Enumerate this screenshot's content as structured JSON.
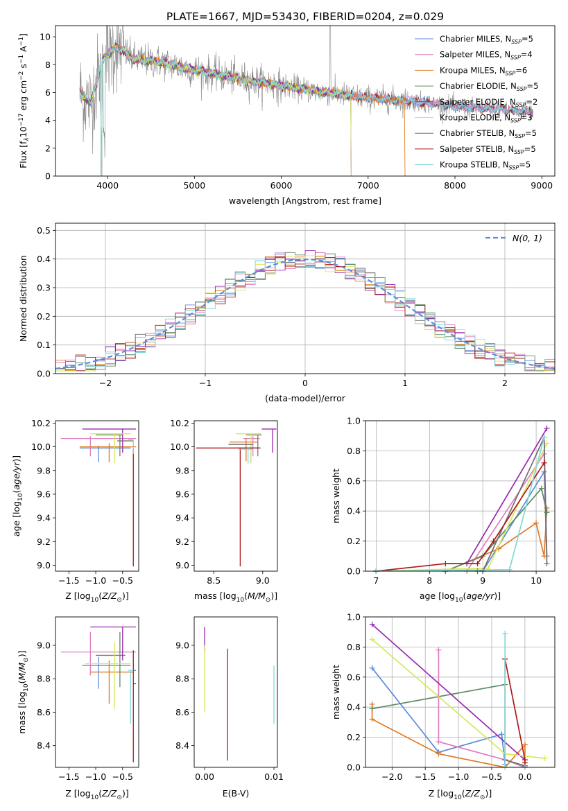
{
  "figure_title": "PLATE=1667, MJD=53430, FIBERID=0204, z=0.029",
  "colors": {
    "Chabrier MILES": "#5b8bd9",
    "Salpeter MILES": "#e07cc0",
    "Kroupa MILES": "#e07a22",
    "Chabrier ELODIE": "#5e8a64",
    "Salpeter ELODIE": "#9b27b0",
    "Kroupa ELODIE": "#d7e85a",
    "Chabrier STELIB": "#6e6e6e",
    "Salpeter STELIB": "#b01818",
    "Kroupa STELIB": "#7fd8d8"
  },
  "chart_data": [
    {
      "id": "spectrum",
      "type": "line",
      "xlabel": "wavelength [Angstrom, rest frame]",
      "ylabel_parts": {
        "a": "Flux [f",
        "sub1": "λ",
        "b": "10",
        "sup1": "−17",
        "c": " erg cm",
        "sup2": "−2",
        "d": " s",
        "sup3": "−1",
        "e": " A",
        "sup4": "−1",
        "f": "]"
      },
      "xlim": [
        3400,
        9150
      ],
      "ylim": [
        0,
        10.8
      ],
      "xticks": [
        4000,
        5000,
        6000,
        7000,
        8000,
        9000
      ],
      "yticks": [
        0,
        2,
        4,
        6,
        8,
        10
      ],
      "legend_position": "upper-right",
      "legend": [
        {
          "text": "Chabrier MILES, N",
          "sub": "SSP",
          "tail": "=5",
          "color": "#5b8bd9"
        },
        {
          "text": "Salpeter MILES, N",
          "sub": "SSP",
          "tail": "=4",
          "color": "#e07cc0"
        },
        {
          "text": "Kroupa MILES, N",
          "sub": "SSP",
          "tail": "=6",
          "color": "#e07a22"
        },
        {
          "text": "Chabrier ELODIE, N",
          "sub": "SSP",
          "tail": "=5",
          "color": "#5e8a64"
        },
        {
          "text": "Salpeter ELODIE, N",
          "sub": "SSP",
          "tail": "=2",
          "color": "#9b27b0"
        },
        {
          "text": "Kroupa ELODIE, N",
          "sub": "SSP",
          "tail": "=3",
          "color": "#d7e85a"
        },
        {
          "text": "Chabrier STELIB, N",
          "sub": "SSP",
          "tail": "=5",
          "color": "#6e6e6e"
        },
        {
          "text": "Salpeter STELIB, N",
          "sub": "SSP",
          "tail": "=5",
          "color": "#b01818"
        },
        {
          "text": "Kroupa STELIB, N",
          "sub": "SSP",
          "tail": "=5",
          "color": "#7fd8d8"
        }
      ],
      "continuum_anchor_points": [
        [
          3680,
          6.0
        ],
        [
          3800,
          5.2
        ],
        [
          3950,
          8.4
        ],
        [
          4100,
          9.3
        ],
        [
          4300,
          8.4
        ],
        [
          4600,
          8.2
        ],
        [
          5000,
          7.6
        ],
        [
          5500,
          7.0
        ],
        [
          6000,
          6.5
        ],
        [
          6500,
          6.0
        ],
        [
          7000,
          5.6
        ],
        [
          7500,
          5.4
        ],
        [
          8000,
          5.0
        ],
        [
          8500,
          4.8
        ],
        [
          8900,
          4.6
        ]
      ],
      "model_cutoffs": [
        {
          "model": "Kroupa MILES",
          "end": 7420
        },
        {
          "model": "Kroupa ELODIE",
          "end": 6800
        },
        {
          "model": "Chabrier ELODIE",
          "end": 6800
        },
        {
          "model": "Salpeter ELODIE",
          "end": 6800
        }
      ]
    },
    {
      "id": "residuals",
      "type": "histogram",
      "xlabel": "(data-model)/error",
      "ylabel": "Normed distribution",
      "xlim": [
        -2.5,
        2.5
      ],
      "ylim": [
        0,
        0.525
      ],
      "xticks": [
        -2,
        -1,
        0,
        1,
        2
      ],
      "xtick_labels": [
        "−2",
        "−1",
        "0",
        "1",
        "2"
      ],
      "yticks": [
        0.0,
        0.1,
        0.2,
        0.3,
        0.4,
        0.5
      ],
      "bin_width": 0.1,
      "grid": true,
      "legend_position": "upper-right",
      "legend_label": "N(0, 1)",
      "reference_curve": "standard normal",
      "reference_color": "#5b8bd9"
    },
    {
      "id": "age_vs_Z",
      "type": "errorbar",
      "xlabel": "Z [log10(Z/Z⊙)]",
      "ylabel": "age  [log10(age/yr)]",
      "xlim": [
        -1.75,
        -0.2
      ],
      "ylim": [
        8.95,
        10.22
      ],
      "xticks": [
        -1.5,
        -1.0,
        -0.5
      ],
      "xtick_labels": [
        "−1.5",
        "−1.0",
        "−0.5"
      ],
      "yticks": [
        9.0,
        9.2,
        9.4,
        9.6,
        9.8,
        10.0,
        10.2
      ],
      "points": [
        {
          "model": "Chabrier MILES",
          "x": -0.95,
          "xerr": [
            0.35,
            0.6
          ],
          "y": 9.99,
          "yerr": [
            0.12,
            0.02
          ]
        },
        {
          "model": "Salpeter MILES",
          "x": -1.1,
          "xerr": [
            0.55,
            0.85
          ],
          "y": 10.07,
          "yerr": [
            0.15,
            0.02
          ]
        },
        {
          "model": "Kroupa MILES",
          "x": -0.75,
          "xerr": [
            0.55,
            0.5
          ],
          "y": 10.0,
          "yerr": [
            0.13,
            0.03
          ]
        },
        {
          "model": "Chabrier ELODIE",
          "x": -0.55,
          "xerr": [
            0.45,
            0.05
          ],
          "y": 10.1,
          "yerr": [
            0.18,
            0.0
          ]
        },
        {
          "model": "Salpeter ELODIE",
          "x": -0.5,
          "xerr": [
            0.75,
            0.25
          ],
          "y": 10.15,
          "yerr": [
            0.2,
            0.0
          ]
        },
        {
          "model": "Kroupa ELODIE",
          "x": -0.65,
          "xerr": [
            0.45,
            0.3
          ],
          "y": 10.11,
          "yerr": [
            0.25,
            0.0
          ]
        },
        {
          "model": "Chabrier STELIB",
          "x": -0.3,
          "xerr": [
            0.3,
            0.0
          ],
          "y": 10.05,
          "yerr": [
            0.0,
            0.0
          ]
        },
        {
          "model": "Salpeter STELIB",
          "x": -0.3,
          "xerr": [
            0.0,
            0.0
          ],
          "y": 9.99,
          "yerr": [
            1.0,
            0.0
          ]
        },
        {
          "model": "Kroupa STELIB",
          "x": -0.3,
          "xerr": [
            0.1,
            0.0
          ],
          "y": 10.06,
          "yerr": [
            0.12,
            0.0
          ]
        }
      ]
    },
    {
      "id": "age_vs_mass",
      "type": "errorbar",
      "xlabel": "mass [log10(M/M⊙)]",
      "xlim": [
        8.3,
        9.15
      ],
      "ylim": [
        8.95,
        10.22
      ],
      "xticks": [
        8.5,
        9.0
      ],
      "xtick_labels": [
        "8.5",
        "9.0"
      ],
      "yticks": [
        9.0,
        9.2,
        9.4,
        9.6,
        9.8,
        10.0,
        10.2
      ],
      "points": [
        {
          "model": "Chabrier MILES",
          "x": 8.88,
          "xerr": [
            0.17,
            0.1
          ],
          "y": 9.99,
          "yerr": [
            0.12,
            0.02
          ]
        },
        {
          "model": "Salpeter MILES",
          "x": 8.9,
          "xerr": [
            0.1,
            0.07
          ],
          "y": 10.07,
          "yerr": [
            0.15,
            0.02
          ]
        },
        {
          "model": "Kroupa MILES",
          "x": 8.83,
          "xerr": [
            0.17,
            0.12
          ],
          "y": 10.04,
          "yerr": [
            0.16,
            0.03
          ]
        },
        {
          "model": "Chabrier ELODIE",
          "x": 8.95,
          "xerr": [
            0.12,
            0.04
          ],
          "y": 10.1,
          "yerr": [
            0.18,
            0.0
          ]
        },
        {
          "model": "Salpeter ELODIE",
          "x": 9.1,
          "xerr": [
            0.11,
            0.04
          ],
          "y": 10.15,
          "yerr": [
            0.2,
            0.0
          ]
        },
        {
          "model": "Kroupa ELODIE",
          "x": 8.88,
          "xerr": [
            0.15,
            0.1
          ],
          "y": 10.11,
          "yerr": [
            0.25,
            0.0
          ]
        },
        {
          "model": "Chabrier STELIB",
          "x": 8.85,
          "xerr": [
            0.2,
            0.05
          ],
          "y": 10.02,
          "yerr": [
            0.0,
            0.0
          ]
        },
        {
          "model": "Salpeter STELIB",
          "x": 8.77,
          "xerr": [
            0.45,
            0.2
          ],
          "y": 9.99,
          "yerr": [
            1.0,
            0.0
          ]
        },
        {
          "model": "Kroupa STELIB",
          "x": 8.85,
          "xerr": [
            0.1,
            0.05
          ],
          "y": 9.98,
          "yerr": [
            0.12,
            0.02
          ]
        }
      ]
    },
    {
      "id": "weight_vs_age",
      "type": "line",
      "xlabel": "age  [log10(age/yr)]",
      "ylabel": "mass weight",
      "xlim": [
        6.8,
        10.35
      ],
      "ylim": [
        0,
        1.0
      ],
      "xticks": [
        7,
        8,
        9,
        10
      ],
      "yticks": [
        0.0,
        0.2,
        0.4,
        0.6,
        0.8,
        1.0
      ],
      "grid": true,
      "series": [
        {
          "model": "Chabrier MILES",
          "x": [
            7.0,
            8.3,
            9.0,
            10.15,
            10.2
          ],
          "y": [
            0.0,
            0.0,
            0.0,
            0.66,
            0.1
          ]
        },
        {
          "model": "Salpeter MILES",
          "x": [
            7.0,
            8.7,
            10.15,
            10.2
          ],
          "y": [
            0.0,
            0.0,
            0.78,
            0.1
          ]
        },
        {
          "model": "Kroupa MILES",
          "x": [
            7.0,
            8.3,
            9.3,
            10.0,
            10.15,
            10.2
          ],
          "y": [
            0.0,
            0.0,
            0.15,
            0.32,
            0.1,
            0.42
          ]
        },
        {
          "model": "Chabrier ELODIE",
          "x": [
            7.0,
            8.3,
            9.0,
            10.1,
            10.2
          ],
          "y": [
            0.0,
            0.0,
            0.1,
            0.55,
            0.39
          ]
        },
        {
          "model": "Salpeter ELODIE",
          "x": [
            8.7,
            10.2
          ],
          "y": [
            0.05,
            0.95
          ]
        },
        {
          "model": "Kroupa ELODIE",
          "x": [
            7.0,
            9.1,
            10.2
          ],
          "y": [
            0.0,
            0.02,
            0.85
          ]
        },
        {
          "model": "Chabrier STELIB",
          "x": [
            7.0,
            8.9,
            9.0,
            10.15,
            10.2
          ],
          "y": [
            0.0,
            0.0,
            0.0,
            0.89,
            0.05
          ]
        },
        {
          "model": "Salpeter STELIB",
          "x": [
            7.0,
            8.3,
            8.9,
            9.2,
            10.15
          ],
          "y": [
            0.0,
            0.05,
            0.05,
            0.2,
            0.72
          ]
        },
        {
          "model": "Kroupa STELIB",
          "x": [
            7.0,
            9.5,
            10.15
          ],
          "y": [
            0.0,
            0.01,
            0.89
          ]
        }
      ]
    },
    {
      "id": "mass_vs_Z",
      "type": "errorbar",
      "xlabel": "Z [log10(Z/Z⊙)]",
      "ylabel": "mass [log10(M/M⊙)]",
      "xlim": [
        -1.75,
        -0.2
      ],
      "ylim": [
        8.27,
        9.17
      ],
      "xticks": [
        -1.5,
        -1.0,
        -0.5
      ],
      "xtick_labels": [
        "−1.5",
        "−1.0",
        "−0.5"
      ],
      "yticks": [
        8.4,
        8.6,
        8.8,
        9.0
      ],
      "points": [
        {
          "model": "Chabrier MILES",
          "x": -0.95,
          "xerr": [
            0.3,
            0.6
          ],
          "y": 8.88,
          "yerr": [
            0.14,
            0.05
          ]
        },
        {
          "model": "Salpeter MILES",
          "x": -1.1,
          "xerr": [
            0.55,
            0.85
          ],
          "y": 8.96,
          "yerr": [
            0.14,
            0.12
          ]
        },
        {
          "model": "Kroupa MILES",
          "x": -0.75,
          "xerr": [
            0.35,
            0.45
          ],
          "y": 8.84,
          "yerr": [
            0.19,
            0.07
          ]
        },
        {
          "model": "Chabrier ELODIE",
          "x": -0.55,
          "xerr": [
            0.45,
            0.1
          ],
          "y": 8.94,
          "yerr": [
            0.19,
            0.14
          ]
        },
        {
          "model": "Salpeter ELODIE",
          "x": -0.5,
          "xerr": [
            0.6,
            0.25
          ],
          "y": 9.11,
          "yerr": [
            0.2,
            0.0
          ]
        },
        {
          "model": "Kroupa ELODIE",
          "x": -0.65,
          "xerr": [
            0.55,
            0.3
          ],
          "y": 8.89,
          "yerr": [
            0.27,
            0.13
          ]
        },
        {
          "model": "Chabrier STELIB",
          "x": -0.3,
          "xerr": [
            0.0,
            0.05
          ],
          "y": 8.85,
          "yerr": [
            0.0,
            0.0
          ]
        },
        {
          "model": "Salpeter STELIB",
          "x": -0.3,
          "xerr": [
            0.0,
            0.05
          ],
          "y": 8.77,
          "yerr": [
            0.47,
            0.2
          ]
        },
        {
          "model": "Kroupa STELIB",
          "x": -0.35,
          "xerr": [
            0.05,
            0.05
          ],
          "y": 8.85,
          "yerr": [
            0.32,
            0.0
          ]
        }
      ]
    },
    {
      "id": "mass_vs_ebv",
      "type": "errorbar",
      "xlabel": "E(B-V)",
      "xlim": [
        -0.0015,
        0.0105
      ],
      "ylim": [
        8.27,
        9.17
      ],
      "xticks": [
        0.0,
        0.01
      ],
      "xtick_labels": [
        "0.00",
        "0.01"
      ],
      "yticks": [
        8.4,
        8.6,
        8.8,
        9.0
      ],
      "points": [
        {
          "model": "Salpeter ELODIE",
          "x": 0.0,
          "xerr": [
            0,
            0
          ],
          "y": 9.11,
          "yerr": [
            0.15,
            0.0
          ]
        },
        {
          "model": "Kroupa ELODIE",
          "x": 0.0,
          "xerr": [
            0,
            0
          ],
          "y": 8.9,
          "yerr": [
            0.3,
            0.1
          ]
        },
        {
          "model": "Salpeter STELIB",
          "x": 0.0033,
          "xerr": [
            0,
            0
          ],
          "y": 8.98,
          "yerr": [
            0.67,
            0.0
          ]
        },
        {
          "model": "Kroupa STELIB",
          "x": 0.01,
          "xerr": [
            0,
            0
          ],
          "y": 8.88,
          "yerr": [
            0.35,
            0.0
          ]
        }
      ]
    },
    {
      "id": "weight_vs_Z",
      "type": "line",
      "xlabel": "Z [log10(Z/Z⊙)]",
      "ylabel": "mass weight",
      "xlim": [
        -2.4,
        0.45
      ],
      "ylim": [
        0,
        1.0
      ],
      "xticks": [
        -2.0,
        -1.5,
        -1.0,
        -0.5,
        0.0
      ],
      "xtick_labels": [
        "−2.0",
        "−1.5",
        "−1.0",
        "−0.5",
        "0.0"
      ],
      "yticks": [
        0.0,
        0.2,
        0.4,
        0.6,
        0.8,
        1.0
      ],
      "grid": true,
      "series": [
        {
          "model": "Chabrier MILES",
          "x": [
            -2.3,
            -1.3,
            -0.35,
            -0.3
          ],
          "y": [
            0.66,
            0.1,
            0.22,
            0.02
          ]
        },
        {
          "model": "Salpeter MILES",
          "x": [
            -1.3,
            -1.3,
            -0.3,
            0.0
          ],
          "y": [
            0.78,
            0.17,
            0.05,
            0.0
          ]
        },
        {
          "model": "Kroupa MILES",
          "x": [
            -2.3,
            -2.3,
            -1.3,
            -0.3,
            0.0,
            0.0
          ],
          "y": [
            0.42,
            0.32,
            0.09,
            0.0,
            0.15,
            0.0
          ]
        },
        {
          "model": "Chabrier ELODIE",
          "x": [
            -2.3,
            -0.3
          ],
          "y": [
            0.39,
            0.55
          ]
        },
        {
          "model": "Salpeter ELODIE",
          "x": [
            -2.3,
            0.0
          ],
          "y": [
            0.95,
            0.05
          ]
        },
        {
          "model": "Kroupa ELODIE",
          "x": [
            -2.3,
            -0.3,
            0.3
          ],
          "y": [
            0.85,
            0.09,
            0.06
          ]
        },
        {
          "model": "Chabrier STELIB",
          "x": [
            -0.3,
            -0.3,
            0.0
          ],
          "y": [
            0.72,
            0.05,
            0.01
          ]
        },
        {
          "model": "Salpeter STELIB",
          "x": [
            -0.3,
            0.0,
            0.0
          ],
          "y": [
            0.72,
            0.05,
            0.03
          ]
        },
        {
          "model": "Kroupa STELIB",
          "x": [
            -0.3,
            -0.3,
            0.0
          ],
          "y": [
            0.89,
            0.0,
            0.0
          ]
        }
      ]
    }
  ]
}
